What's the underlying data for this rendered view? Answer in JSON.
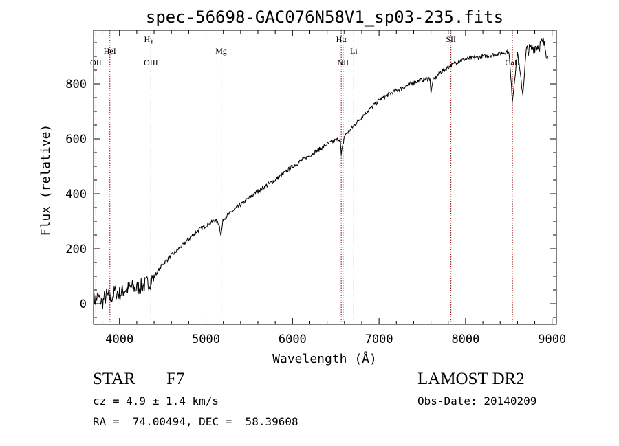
{
  "chart_data": {
    "type": "line",
    "title": "spec-56698-GAC076N58V1_sp03-235.fits",
    "xlabel": "Wavelength (Å)",
    "ylabel": "Flux (relative)",
    "xlim": [
      3700,
      9050
    ],
    "ylim": [
      -75,
      995
    ],
    "x_ticks": [
      4000,
      5000,
      6000,
      7000,
      8000,
      9000
    ],
    "y_ticks": [
      0,
      200,
      400,
      600,
      800
    ],
    "grid": false,
    "series": [
      {
        "x": [
          3700,
          3750,
          3800,
          3850,
          3900,
          3950,
          4000,
          4050,
          4100,
          4150,
          4200,
          4250,
          4300,
          4350,
          4400,
          4450,
          4500,
          4600,
          4700,
          4800,
          4900,
          5000,
          5100,
          5150,
          5173,
          5200,
          5300,
          5400,
          5500,
          5600,
          5700,
          5800,
          5900,
          6000,
          6100,
          6200,
          6300,
          6400,
          6500,
          6550,
          6563,
          6600,
          6700,
          6800,
          6900,
          7000,
          7100,
          7200,
          7300,
          7400,
          7500,
          7590,
          7600,
          7620,
          7700,
          7800,
          7900,
          8000,
          8100,
          8200,
          8300,
          8400,
          8450,
          8500,
          8542,
          8600,
          8662,
          8700,
          8750,
          8800,
          8850,
          8900,
          8950
        ],
        "y": [
          10,
          25,
          5,
          30,
          20,
          45,
          35,
          50,
          55,
          60,
          55,
          65,
          70,
          80,
          100,
          120,
          145,
          175,
          205,
          235,
          265,
          285,
          305,
          290,
          250,
          310,
          335,
          360,
          385,
          410,
          430,
          450,
          475,
          500,
          520,
          540,
          560,
          580,
          595,
          600,
          540,
          610,
          645,
          680,
          710,
          740,
          760,
          775,
          790,
          805,
          815,
          820,
          760,
          810,
          840,
          860,
          880,
          890,
          895,
          900,
          905,
          910,
          915,
          920,
          740,
          915,
          760,
          920,
          925,
          935,
          940,
          950,
          900
        ]
      }
    ],
    "lines": [
      {
        "label": "OII",
        "x": 3727,
        "level": "low"
      },
      {
        "label": "HeI",
        "x": 3889,
        "level": "mid"
      },
      {
        "label": "Hγ",
        "x": 4340,
        "level": "high"
      },
      {
        "label": "OIII",
        "x": 4363,
        "level": "low"
      },
      {
        "label": "Mg",
        "x": 5175,
        "level": "mid"
      },
      {
        "label": "Hα",
        "x": 6563,
        "level": "high"
      },
      {
        "label": "NII",
        "x": 6584,
        "level": "low"
      },
      {
        "label": "Li",
        "x": 6708,
        "level": "mid"
      },
      {
        "label": "SII",
        "x": 7831,
        "level": "high"
      },
      {
        "label": "CaII",
        "x": 8542,
        "level": "low"
      }
    ],
    "line_color": "#8b0000",
    "spectrum_color": "#000000"
  },
  "info": {
    "object_type": "STAR",
    "subclass": "F7",
    "survey": "LAMOST DR2",
    "cz": "cz = 4.9 ± 1.4 km/s",
    "obs_date": "Obs-Date: 20140209",
    "coords": "RA =  74.00494, DEC =  58.39608"
  }
}
